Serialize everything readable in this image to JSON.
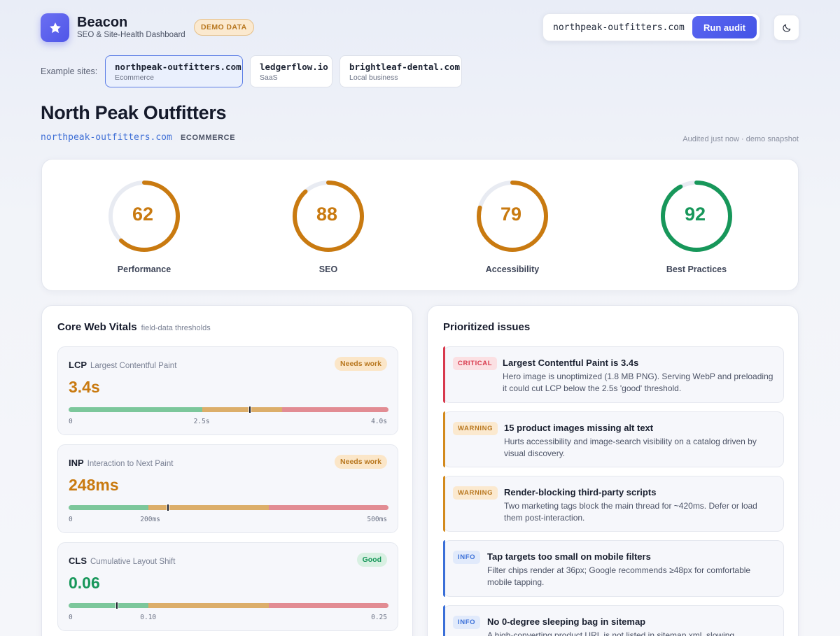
{
  "app": {
    "name": "Beacon",
    "subtitle": "SEO & Site-Health Dashboard",
    "demo_badge": "DEMO DATA",
    "audit_input_value": "northpeak-outfitters.com",
    "run_button": "Run audit",
    "theme_icon": "moon-icon"
  },
  "examples": {
    "label": "Example sites:",
    "sites": [
      {
        "domain": "northpeak-outfitters.com",
        "type": "Ecommerce"
      },
      {
        "domain": "ledgerflow.io",
        "type": "SaaS"
      },
      {
        "domain": "brightleaf-dental.com",
        "type": "Local business"
      }
    ]
  },
  "site": {
    "title": "North Peak Outfitters",
    "url": "northpeak-outfitters.com",
    "type": "ECOMMERCE",
    "audited": "Audited just now · demo snapshot"
  },
  "scores": [
    {
      "label": "Performance",
      "value": 62,
      "color": "#c97a10"
    },
    {
      "label": "SEO",
      "value": 88,
      "color": "#c97a10"
    },
    {
      "label": "Accessibility",
      "value": 79,
      "color": "#c97a10"
    },
    {
      "label": "Best Practices",
      "value": 92,
      "color": "#17975a"
    }
  ],
  "cwv": {
    "title": "Core Web Vitals",
    "subtitle": "field-data thresholds",
    "vitals": [
      {
        "abbr": "LCP",
        "name": "Largest Contentful Paint",
        "badge": "Needs work",
        "value": "3.4s",
        "status": "warn",
        "ticks": [
          "0",
          "2.5s",
          "4.0s"
        ],
        "marker_fraction": 0.567,
        "good_fraction": 0.417,
        "ok_fraction": 0.667
      },
      {
        "abbr": "INP",
        "name": "Interaction to Next Paint",
        "badge": "Needs work",
        "value": "248ms",
        "status": "warn",
        "ticks": [
          "0",
          "200ms",
          "500ms"
        ],
        "marker_fraction": 0.31,
        "good_fraction": 0.25,
        "ok_fraction": 0.625
      },
      {
        "abbr": "CLS",
        "name": "Cumulative Layout Shift",
        "badge": "Good",
        "value": "0.06",
        "status": "good",
        "ticks": [
          "0",
          "0.10",
          "0.25"
        ],
        "marker_fraction": 0.15,
        "good_fraction": 0.25,
        "ok_fraction": 0.625
      }
    ]
  },
  "issues": {
    "title": "Prioritized issues",
    "items": [
      {
        "severity": "CRITICAL",
        "title": "Largest Contentful Paint is 3.4s",
        "desc": "Hero image is unoptimized (1.8 MB PNG). Serving WebP and preloading it could cut LCP below the 2.5s 'good' threshold."
      },
      {
        "severity": "WARNING",
        "title": "15 product images missing alt text",
        "desc": "Hurts accessibility and image-search visibility on a catalog driven by visual discovery."
      },
      {
        "severity": "WARNING",
        "title": "Render-blocking third-party scripts",
        "desc": "Two marketing tags block the main thread for ~420ms. Defer or load them post-interaction."
      },
      {
        "severity": "INFO",
        "title": "Tap targets too small on mobile filters",
        "desc": "Filter chips render at 36px; Google recommends ≥48px for comfortable mobile tapping."
      },
      {
        "severity": "INFO",
        "title": "No 0-degree sleeping bag in sitemap",
        "desc": "A high-converting product URL is not listed in sitemap.xml, slowing"
      }
    ]
  },
  "colors": {
    "accent": "#4f56e8",
    "good": "#17975a",
    "warn": "#c97a10",
    "critical": "#d8394d",
    "info": "#3a6fd8"
  }
}
